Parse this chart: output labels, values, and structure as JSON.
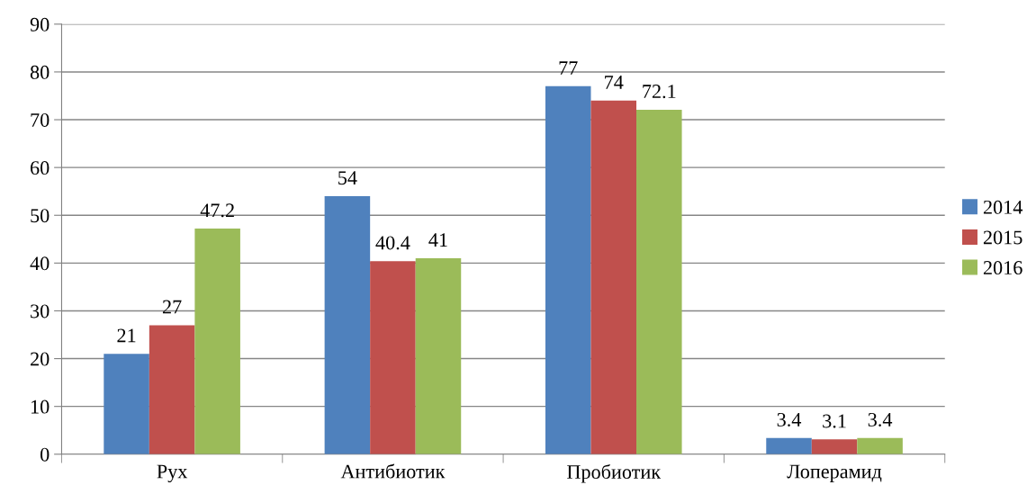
{
  "chart_data": {
    "type": "bar",
    "categories": [
      "Рух",
      "Антибиотик",
      "Пробиотик",
      "Лоперамид"
    ],
    "series": [
      {
        "name": "2014",
        "color": "#4f81bd",
        "values": [
          21,
          54,
          77,
          3.4
        ]
      },
      {
        "name": "2015",
        "color": "#c0504d",
        "values": [
          27,
          40.4,
          74,
          3.1
        ]
      },
      {
        "name": "2016",
        "color": "#9bbb59",
        "values": [
          47.2,
          41,
          72.1,
          3.4
        ]
      }
    ],
    "ylim": [
      0,
      90
    ],
    "yticks": [
      0,
      10,
      20,
      30,
      40,
      50,
      60,
      70,
      80,
      90
    ],
    "grid": "y",
    "legend": "right",
    "data_labels": true
  }
}
